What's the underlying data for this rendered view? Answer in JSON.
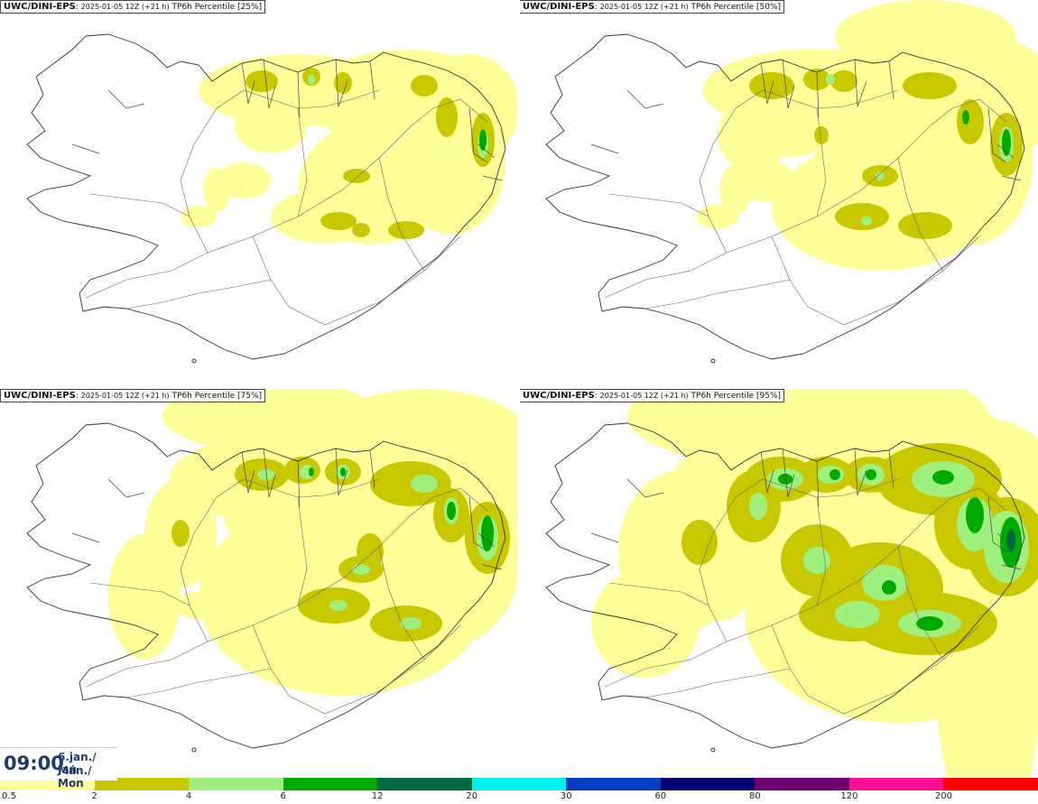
{
  "panels": [
    {
      "model": "UWC/DINI-EPS",
      "meta": "2025-01-05 12Z (+21 h)",
      "var": "TP6h Percentile [25%]",
      "level": 1
    },
    {
      "model": "UWC/DINI-EPS",
      "meta": "2025-01-05 12Z (+21 h)",
      "var": "TP6h Percentile [50%]",
      "level": 2
    },
    {
      "model": "UWC/DINI-EPS",
      "meta": "2025-01-05 12Z (+21 h)",
      "var": "TP6h Percentile [75%]",
      "level": 3
    },
    {
      "model": "UWC/DINI-EPS",
      "meta": "2025-01-05 12Z (+21 h)",
      "var": "TP6h Percentile [95%]",
      "level": 4
    }
  ],
  "valid_time": {
    "time": "09:00",
    "date_line1": "6.jan./ Jan",
    "date_line2": "Mán./ Mon"
  },
  "legend": {
    "colors": [
      "#ffff99",
      "#c8c800",
      "#a0f080",
      "#00aa00",
      "#006a40",
      "#00f0f0",
      "#0040c0",
      "#000070",
      "#700070",
      "#ff1090",
      "#ff0000"
    ],
    "tick_labels": [
      "0.5",
      "2",
      "4",
      "6",
      "12",
      "20",
      "30",
      "60",
      "80",
      "120",
      "200"
    ]
  }
}
